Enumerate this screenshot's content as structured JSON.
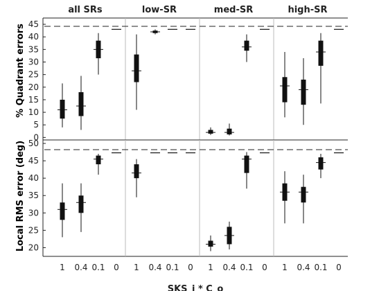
{
  "chart_data": [
    {
      "type": "boxplot",
      "panel": "top",
      "ylabel": "% Quadrant errors",
      "ylim": [
        -1,
        47.5
      ],
      "yticks": [
        0,
        5,
        10,
        15,
        20,
        25,
        30,
        35,
        40,
        45
      ],
      "groups": [
        "all SRs",
        "low-SR",
        "med-SR",
        "high-SR"
      ],
      "categories": [
        "1",
        "0.4",
        "0.1",
        "0"
      ],
      "reference_line": 44.2,
      "series": [
        {
          "group": "all SRs",
          "boxes": [
            {
              "whisker_low": 4,
              "q1": 7.5,
              "median": 11,
              "q3": 15,
              "whisker_high": 21.5
            },
            {
              "whisker_low": 3,
              "q1": 8.5,
              "median": 12.5,
              "q3": 18,
              "whisker_high": 24.5
            },
            {
              "whisker_low": 25,
              "q1": 31.5,
              "median": 35,
              "q3": 38.5,
              "whisker_high": 41.5
            },
            {
              "whisker_low": 43,
              "q1": 43,
              "median": 43,
              "q3": 43,
              "whisker_high": 43
            }
          ]
        },
        {
          "group": "low-SR",
          "boxes": [
            {
              "whisker_low": 11,
              "q1": 22,
              "median": 26.5,
              "q3": 33,
              "whisker_high": 41
            },
            {
              "whisker_low": 41,
              "q1": 41.5,
              "median": 42,
              "q3": 42.5,
              "whisker_high": 43
            },
            {
              "whisker_low": 43,
              "q1": 43,
              "median": 43,
              "q3": 43,
              "whisker_high": 43
            },
            {
              "whisker_low": 43,
              "q1": 43,
              "median": 43,
              "q3": 43,
              "whisker_high": 43
            }
          ]
        },
        {
          "group": "med-SR",
          "boxes": [
            {
              "whisker_low": 1,
              "q1": 1.5,
              "median": 2,
              "q3": 3,
              "whisker_high": 4
            },
            {
              "whisker_low": 0.8,
              "q1": 1.2,
              "median": 2,
              "q3": 3.5,
              "whisker_high": 5.5
            },
            {
              "whisker_low": 30,
              "q1": 34.5,
              "median": 36,
              "q3": 38.5,
              "whisker_high": 41
            },
            {
              "whisker_low": 43,
              "q1": 43,
              "median": 43,
              "q3": 43,
              "whisker_high": 43
            }
          ]
        },
        {
          "group": "high-SR",
          "boxes": [
            {
              "whisker_low": 8,
              "q1": 14,
              "median": 20.5,
              "q3": 24,
              "whisker_high": 34
            },
            {
              "whisker_low": 5,
              "q1": 13,
              "median": 19,
              "q3": 23,
              "whisker_high": 31.5
            },
            {
              "whisker_low": 13.5,
              "q1": 28.5,
              "median": 34,
              "q3": 38.5,
              "whisker_high": 41.5
            },
            {
              "whisker_low": 43,
              "q1": 43,
              "median": 43,
              "q3": 43,
              "whisker_high": 43
            }
          ]
        }
      ]
    },
    {
      "type": "boxplot",
      "panel": "bottom",
      "ylabel": "Local RMS error (deg)",
      "ylim": [
        17.5,
        51
      ],
      "yticks": [
        20,
        25,
        30,
        35,
        40,
        45,
        50
      ],
      "xlabel": "SKS_i * C_o",
      "groups": [
        "all SRs",
        "low-SR",
        "med-SR",
        "high-SR"
      ],
      "categories": [
        "1",
        "0.4",
        "0.1",
        "0"
      ],
      "reference_line": 48.2,
      "series": [
        {
          "group": "all SRs",
          "boxes": [
            {
              "whisker_low": 23,
              "q1": 28,
              "median": 31,
              "q3": 33,
              "whisker_high": 38.5
            },
            {
              "whisker_low": 24.5,
              "q1": 30,
              "median": 33,
              "q3": 35,
              "whisker_high": 38.5
            },
            {
              "whisker_low": 41,
              "q1": 44,
              "median": 45.5,
              "q3": 46.5,
              "whisker_high": 47
            },
            {
              "whisker_low": 47.3,
              "q1": 47.3,
              "median": 47.3,
              "q3": 47.3,
              "whisker_high": 47.3
            }
          ]
        },
        {
          "group": "low-SR",
          "boxes": [
            {
              "whisker_low": 34.5,
              "q1": 40,
              "median": 41.5,
              "q3": 44,
              "whisker_high": 45.5
            },
            {
              "whisker_low": 47.3,
              "q1": 47.3,
              "median": 47.3,
              "q3": 47.3,
              "whisker_high": 47.3
            },
            {
              "whisker_low": 47.3,
              "q1": 47.3,
              "median": 47.3,
              "q3": 47.3,
              "whisker_high": 47.3
            },
            {
              "whisker_low": 47.3,
              "q1": 47.3,
              "median": 47.3,
              "q3": 47.3,
              "whisker_high": 47.3
            }
          ]
        },
        {
          "group": "med-SR",
          "boxes": [
            {
              "whisker_low": 19,
              "q1": 20.3,
              "median": 21,
              "q3": 22,
              "whisker_high": 23.5
            },
            {
              "whisker_low": 19.5,
              "q1": 21,
              "median": 23.5,
              "q3": 26,
              "whisker_high": 27.5
            },
            {
              "whisker_low": 37,
              "q1": 41.5,
              "median": 45.5,
              "q3": 46.5,
              "whisker_high": 47.5
            },
            {
              "whisker_low": 47.3,
              "q1": 47.3,
              "median": 47.3,
              "q3": 47.3,
              "whisker_high": 47.3
            }
          ]
        },
        {
          "group": "high-SR",
          "boxes": [
            {
              "whisker_low": 27,
              "q1": 33.5,
              "median": 36,
              "q3": 38.5,
              "whisker_high": 42
            },
            {
              "whisker_low": 27,
              "q1": 33,
              "median": 36,
              "q3": 37.5,
              "whisker_high": 41
            },
            {
              "whisker_low": 40,
              "q1": 42.5,
              "median": 44.5,
              "q3": 46,
              "whisker_high": 47
            },
            {
              "whisker_low": 47.3,
              "q1": 47.3,
              "median": 47.3,
              "q3": 47.3,
              "whisker_high": 47.3
            }
          ]
        }
      ]
    }
  ]
}
